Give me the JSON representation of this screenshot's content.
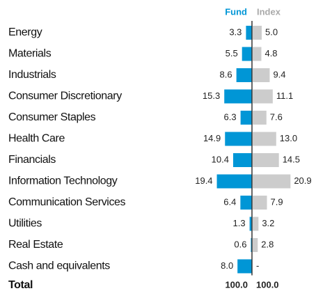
{
  "chart_data": {
    "type": "butterfly",
    "categories": [
      "Energy",
      "Materials",
      "Industrials",
      "Consumer Discretionary",
      "Consumer Staples",
      "Health Care",
      "Financials",
      "Information Technology",
      "Communication Services",
      "Utilities",
      "Real Estate",
      "Cash and equivalents"
    ],
    "series": [
      {
        "name": "Fund",
        "color": "#0096d6",
        "values": [
          3.3,
          5.5,
          8.6,
          15.3,
          6.3,
          14.9,
          10.4,
          19.4,
          6.4,
          1.3,
          0.6,
          8.0
        ],
        "value_labels": [
          "3.3",
          "5.5",
          "8.6",
          "15.3",
          "6.3",
          "14.9",
          "10.4",
          "19.4",
          "6.4",
          "1.3",
          "0.6",
          "8.0"
        ]
      },
      {
        "name": "Index",
        "color": "#cccccc",
        "values": [
          5.0,
          4.8,
          9.4,
          11.1,
          7.6,
          13.0,
          14.5,
          20.9,
          7.9,
          3.2,
          2.8,
          null
        ],
        "value_labels": [
          "5.0",
          "4.8",
          "9.4",
          "11.1",
          "7.6",
          "13.0",
          "14.5",
          "20.9",
          "7.9",
          "3.2",
          "2.8",
          "-"
        ]
      }
    ],
    "total_label": "Total",
    "totals": [
      "100.0",
      "100.0"
    ]
  }
}
